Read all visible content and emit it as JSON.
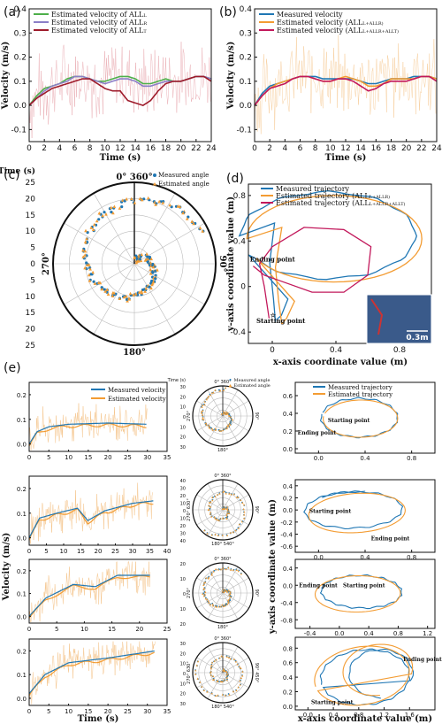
{
  "colors": {
    "green": "#4daf4a",
    "purple": "#8b7fc7",
    "darkred": "#9e1b2b",
    "blue": "#1f77b4",
    "orange": "#f39c33",
    "magenta": "#c2185b",
    "noise_pink": "#e6a0a8",
    "noise_orange": "#f5c48a"
  },
  "panel_labels": {
    "a": "(a)",
    "b": "(b)",
    "c": "(c)",
    "d": "(d)",
    "e": "(e)"
  },
  "chart_data": [
    {
      "id": "a",
      "type": "line",
      "xlabel": "Time (s)",
      "ylabel": "Velocity (m/s)",
      "xlim": [
        0,
        24
      ],
      "ylim": [
        -0.15,
        0.4
      ],
      "xticks": [
        "0",
        "2",
        "4",
        "6",
        "8",
        "10",
        "12",
        "14",
        "16",
        "18",
        "20",
        "22",
        "24"
      ],
      "yticks": [
        "-0.1",
        "0.0",
        "0.1",
        "0.2",
        "0.3",
        "0.4"
      ],
      "legend_position": "top-left",
      "x": [
        0,
        1,
        2,
        3,
        4,
        5,
        6,
        7,
        8,
        9,
        10,
        11,
        12,
        13,
        14,
        15,
        16,
        17,
        18,
        19,
        20,
        21,
        22,
        23,
        24
      ],
      "series": [
        {
          "name": "Estimated velocity of ALL",
          "name_sub": "L",
          "color": "green",
          "values": [
            0,
            0.04,
            0.07,
            0.08,
            0.09,
            0.11,
            0.12,
            0.12,
            0.11,
            0.1,
            0.1,
            0.11,
            0.12,
            0.12,
            0.11,
            0.09,
            0.09,
            0.1,
            0.11,
            0.1,
            0.1,
            0.11,
            0.12,
            0.12,
            0.11
          ]
        },
        {
          "name": "Estimated velocity of ALL",
          "name_sub": "R",
          "color": "purple",
          "values": [
            0,
            0.03,
            0.06,
            0.08,
            0.09,
            0.1,
            0.12,
            0.12,
            0.11,
            0.1,
            0.09,
            0.1,
            0.11,
            0.11,
            0.1,
            0.08,
            0.08,
            0.09,
            0.1,
            0.1,
            0.1,
            0.11,
            0.12,
            0.12,
            0.11
          ]
        },
        {
          "name": "Estimated velocity of ALL",
          "name_sub": "T",
          "color": "darkred",
          "values": [
            0,
            0.03,
            0.05,
            0.07,
            0.08,
            0.09,
            0.1,
            0.11,
            0.11,
            0.09,
            0.07,
            0.06,
            0.06,
            0.02,
            0.01,
            0.0,
            0.02,
            0.06,
            0.09,
            0.1,
            0.1,
            0.11,
            0.12,
            0.12,
            0.1
          ]
        }
      ]
    },
    {
      "id": "b",
      "type": "line",
      "xlabel": "Time (s)",
      "ylabel": "Velocity (m/s)",
      "xlim": [
        0,
        24
      ],
      "ylim": [
        -0.15,
        0.4
      ],
      "xticks": [
        "0",
        "2",
        "4",
        "6",
        "8",
        "10",
        "12",
        "14",
        "16",
        "18",
        "20",
        "22",
        "24"
      ],
      "yticks": [
        "-0.1",
        "0.0",
        "0.1",
        "0.2",
        "0.3",
        "0.4"
      ],
      "legend_position": "top-left",
      "x": [
        0,
        1,
        2,
        3,
        4,
        5,
        6,
        7,
        8,
        9,
        10,
        11,
        12,
        13,
        14,
        15,
        16,
        17,
        18,
        19,
        20,
        21,
        22,
        23,
        24
      ],
      "series": [
        {
          "name": "Measured velocity",
          "color": "blue",
          "values": [
            0,
            0.05,
            0.08,
            0.09,
            0.1,
            0.11,
            0.12,
            0.12,
            0.12,
            0.11,
            0.11,
            0.11,
            0.11,
            0.11,
            0.1,
            0.09,
            0.09,
            0.1,
            0.11,
            0.11,
            0.11,
            0.12,
            0.12,
            0.12,
            0.11
          ]
        },
        {
          "name": "Estimated velocity (ALL",
          "name_sub": "L+ALLR)",
          "color": "orange",
          "values": [
            0,
            0.04,
            0.07,
            0.09,
            0.1,
            0.11,
            0.12,
            0.12,
            0.11,
            0.1,
            0.1,
            0.11,
            0.12,
            0.11,
            0.1,
            0.08,
            0.08,
            0.09,
            0.11,
            0.11,
            0.11,
            0.11,
            0.12,
            0.12,
            0.11
          ]
        },
        {
          "name": "Estimated velocity (ALL",
          "name_sub": "L+ALLR+ALLT)",
          "color": "magenta",
          "values": [
            0,
            0.04,
            0.07,
            0.08,
            0.09,
            0.11,
            0.12,
            0.12,
            0.11,
            0.1,
            0.1,
            0.11,
            0.11,
            0.1,
            0.08,
            0.06,
            0.07,
            0.09,
            0.1,
            0.1,
            0.1,
            0.11,
            0.12,
            0.12,
            0.1
          ]
        }
      ]
    },
    {
      "id": "c",
      "type": "scatter",
      "polar": true,
      "title": "Time (s)",
      "angle_labels": [
        "0° 360°",
        "90°",
        "180°",
        "270°"
      ],
      "rticks": [
        "25",
        "20",
        "15",
        "10",
        "5",
        "0",
        "5",
        "10",
        "15",
        "20",
        "25"
      ],
      "rlim": [
        0,
        25
      ],
      "legend_position": "top-right",
      "series": [
        {
          "name": "Measured angle",
          "color": "blue",
          "marker": "circle"
        },
        {
          "name": "Estimated angle",
          "color": "orange",
          "marker": "triangle"
        }
      ],
      "points_time_angle_deg": [
        [
          0,
          0
        ],
        [
          2,
          40
        ],
        [
          4,
          90
        ],
        [
          6,
          140
        ],
        [
          8,
          180
        ],
        [
          10,
          220
        ],
        [
          12,
          250
        ],
        [
          14,
          270
        ],
        [
          16,
          290
        ],
        [
          18,
          310
        ],
        [
          20,
          330
        ],
        [
          22,
          345
        ],
        [
          24,
          360
        ]
      ]
    },
    {
      "id": "d",
      "type": "line",
      "xlabel": "x-axis coordinate value (m)",
      "ylabel": "y-axis coordinate value (m)",
      "xlim": [
        -0.15,
        1.0
      ],
      "ylim": [
        -0.5,
        0.9
      ],
      "xticks": [
        "0",
        "0.4",
        "0.8"
      ],
      "yticks": [
        "-0.4",
        "0",
        "0.4",
        "0.8"
      ],
      "legend_position": "top",
      "annotations": [
        "Ending point",
        "Starting point"
      ],
      "scale_bar": "0.3m",
      "series": [
        {
          "name": "Measured trajectory",
          "color": "blue"
        },
        {
          "name": "Estimated trajectory (ALL",
          "name_sub": "L+ALLR)",
          "color": "orange"
        },
        {
          "name": "Estimated trajectory (ALL",
          "name_sub": "L+ALLR+ALLT)",
          "color": "magenta"
        }
      ]
    },
    {
      "id": "e",
      "type": "line",
      "shared_xlabel_velocity": "Time (s)",
      "shared_ylabel_velocity": "Velocity (m/s)",
      "shared_ylabel_traj": "y-axis coordinate value (m)",
      "shared_xlabel_traj": "x-axis coordinate value (m)",
      "polar_title": "Time (s)",
      "legend_velocity": [
        "Measured velocity",
        "Estimated velocity"
      ],
      "legend_angle": [
        "Measured angle",
        "Estimated angle"
      ],
      "legend_traj": [
        "Measured trajectory",
        "Estimated trajectory"
      ],
      "rows": [
        {
          "vel_xticks": [
            "0",
            "5",
            "10",
            "15",
            "20",
            "25",
            "30",
            "35"
          ],
          "vel_xmax": 35,
          "vel_yticks": [
            "0.0",
            "0.1",
            "0.2"
          ],
          "vel_ymax": 0.25,
          "vel_end": 30,
          "polar_rticks": [
            "30",
            "20",
            "10",
            "0",
            "10",
            "20",
            "30"
          ],
          "polar_angle": [
            "0° 360°",
            "90°",
            "180°",
            "270°"
          ],
          "traj_xticks": [
            "0.0",
            "0.4",
            "0.8"
          ],
          "traj_yticks": [
            "0.0",
            "0.2",
            "0.4",
            "0.6"
          ],
          "traj_annotations": [
            "Ending point",
            "Starting point"
          ]
        },
        {
          "vel_xticks": [
            "0",
            "5",
            "10",
            "15",
            "20",
            "25",
            "30",
            "35",
            "40"
          ],
          "vel_xmax": 40,
          "vel_yticks": [
            "0.0",
            "0.1",
            "0.2"
          ],
          "vel_ymax": 0.25,
          "vel_end": 36,
          "polar_rticks": [
            "40",
            "30",
            "20",
            "10",
            "0",
            "10",
            "20",
            "30",
            "40"
          ],
          "polar_angle": [
            "0° 360°",
            "90°",
            "180° 540°",
            "270° 630°"
          ],
          "traj_xticks": [
            "0.0",
            "0.4",
            "0.8"
          ],
          "traj_yticks": [
            "-0.6",
            "-0.4",
            "-0.2",
            "0.0",
            "0.2",
            "0.4"
          ],
          "traj_annotations": [
            "Starting point",
            "Ending point"
          ]
        },
        {
          "vel_xticks": [
            "0",
            "5",
            "10",
            "15",
            "20",
            "25"
          ],
          "vel_xmax": 25,
          "vel_yticks": [
            "0.0",
            "0.1",
            "0.2"
          ],
          "vel_ymax": 0.25,
          "vel_end": 22,
          "polar_rticks": [
            "20",
            "10",
            "0",
            "10",
            "20"
          ],
          "polar_angle": [
            "0° 360°",
            "90°",
            "180°",
            "270°"
          ],
          "traj_xticks": [
            "-0.4",
            "0.0",
            "0.4",
            "0.8",
            "1.2"
          ],
          "traj_yticks": [
            "-0.8",
            "-0.4",
            "0.0",
            "0.4"
          ],
          "traj_annotations": [
            "Ending point",
            "Starting point"
          ]
        },
        {
          "vel_xticks": [
            "0",
            "5",
            "10",
            "15",
            "20",
            "25",
            "30",
            "35"
          ],
          "vel_xmax": 35,
          "vel_yticks": [
            "0.0",
            "0.1",
            "0.2"
          ],
          "vel_ymax": 0.25,
          "vel_end": 32,
          "polar_rticks": [
            "30",
            "20",
            "10",
            "0",
            "10",
            "20",
            "30"
          ],
          "polar_angle": [
            "0° 360°",
            "90° 450°",
            "180° 540°",
            "270° 630°"
          ],
          "traj_xticks": [
            "0.0",
            "0.4",
            "0.8",
            "1.2",
            "1.6"
          ],
          "traj_yticks": [
            "0.0",
            "0.2",
            "0.4",
            "0.6",
            "0.8"
          ],
          "traj_annotations": [
            "Ending point",
            "Starting point"
          ]
        }
      ]
    }
  ]
}
